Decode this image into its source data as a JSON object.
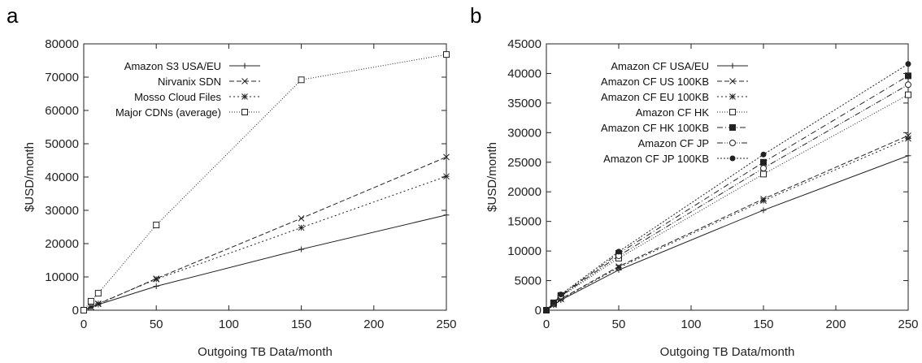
{
  "chart_data": [
    {
      "panel": "a",
      "type": "line",
      "title": "",
      "xlabel": "Outgoing TB Data/month",
      "ylabel": "$USD/month",
      "xlim": [
        0,
        250
      ],
      "ylim": [
        0,
        80000
      ],
      "xticks": [
        0,
        50,
        100,
        150,
        200,
        250
      ],
      "yticks": [
        0,
        10000,
        20000,
        30000,
        40000,
        50000,
        60000,
        70000,
        80000
      ],
      "grid": false,
      "legend_position": "top-left",
      "x": [
        0,
        5,
        10,
        50,
        150,
        250
      ],
      "series": [
        {
          "name": "Amazon S3 USA/EU",
          "marker": "plus",
          "dash": "solid",
          "values": [
            0,
            850,
            1700,
            7200,
            18300,
            28600
          ]
        },
        {
          "name": "Nirvanix SDN",
          "marker": "x",
          "dash": "dashed",
          "values": [
            0,
            900,
            1850,
            9500,
            27600,
            46000
          ]
        },
        {
          "name": "Mosso Cloud Files",
          "marker": "star",
          "dash": "dotted",
          "values": [
            0,
            1000,
            2000,
            9300,
            24800,
            40200
          ]
        },
        {
          "name": "Major CDNs (average)",
          "marker": "square",
          "dash": "fine-dotted",
          "values": [
            0,
            2700,
            5100,
            25600,
            69200,
            76800
          ]
        }
      ]
    },
    {
      "panel": "b",
      "type": "line",
      "title": "",
      "xlabel": "Outgoing TB Data/month",
      "ylabel": "$USD/month",
      "xlim": [
        0,
        250
      ],
      "ylim": [
        0,
        45000
      ],
      "xticks": [
        0,
        50,
        100,
        150,
        200,
        250
      ],
      "yticks": [
        0,
        5000,
        10000,
        15000,
        20000,
        25000,
        30000,
        35000,
        40000,
        45000
      ],
      "grid": false,
      "legend_position": "top-left",
      "x": [
        0,
        5,
        10,
        50,
        150,
        250
      ],
      "series": [
        {
          "name": "Amazon CF USA/EU",
          "marker": "plus",
          "dash": "solid",
          "values": [
            0,
            850,
            1700,
            6800,
            16900,
            26100
          ]
        },
        {
          "name": "Amazon CF US 100KB",
          "marker": "x",
          "dash": "dashed",
          "values": [
            0,
            950,
            1900,
            7400,
            18800,
            29500
          ]
        },
        {
          "name": "Amazon CF EU 100KB",
          "marker": "star",
          "dash": "dotted",
          "values": [
            0,
            930,
            1860,
            7200,
            18500,
            29000
          ]
        },
        {
          "name": "Amazon CF HK",
          "marker": "square",
          "dash": "fine-dotted",
          "values": [
            0,
            1150,
            2300,
            8800,
            23000,
            36400
          ]
        },
        {
          "name": "Amazon CF HK 100KB",
          "marker": "filled-square",
          "dash": "dash-dot",
          "values": [
            0,
            1250,
            2500,
            9600,
            25000,
            39600
          ]
        },
        {
          "name": "Amazon CF JP",
          "marker": "circle",
          "dash": "dash-dot-dot",
          "values": [
            0,
            1200,
            2400,
            9200,
            24000,
            38100
          ]
        },
        {
          "name": "Amazon CF JP 100KB",
          "marker": "filled-circle",
          "dash": "dense-dotted",
          "values": [
            0,
            1300,
            2650,
            9900,
            26300,
            41600
          ]
        }
      ]
    }
  ]
}
